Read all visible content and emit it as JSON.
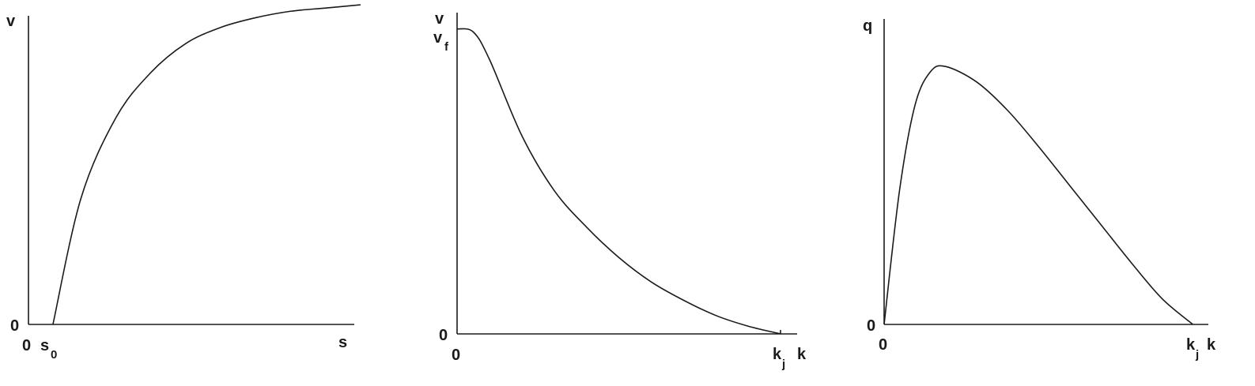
{
  "chart_data": [
    {
      "type": "line",
      "title": "",
      "xlabel": "s",
      "ylabel": "v",
      "x_origin_label": "0",
      "y_origin_label": "0",
      "x_marker": {
        "symbol": "s",
        "subscript": "0"
      },
      "xlim": [
        0,
        10
      ],
      "ylim": [
        0,
        1
      ],
      "grid": false,
      "legend": "none",
      "series": [
        {
          "x": [
            0.7,
            1.5,
            2.5,
            3.5,
            4.5,
            5.5,
            6.5,
            7.5,
            8.5,
            9.5
          ],
          "y": [
            0.0,
            0.39,
            0.64,
            0.78,
            0.87,
            0.92,
            0.95,
            0.97,
            0.98,
            0.99
          ]
        }
      ]
    },
    {
      "type": "line",
      "title": "",
      "xlabel": "k",
      "ylabel": "v",
      "x_origin_label": "0",
      "y_origin_label": "0",
      "y_marker": {
        "symbol": "v",
        "subscript": "f"
      },
      "x_marker": {
        "symbol": "k",
        "subscript": "j"
      },
      "xlim": [
        0,
        1.05
      ],
      "ylim": [
        0,
        1.1
      ],
      "grid": false,
      "legend": "none",
      "series": [
        {
          "x": [
            0.0,
            0.05,
            0.1,
            0.2,
            0.3,
            0.4,
            0.5,
            0.6,
            0.7,
            0.8,
            0.9,
            1.0
          ],
          "y": [
            1.0,
            0.99,
            0.9,
            0.65,
            0.47,
            0.35,
            0.25,
            0.17,
            0.11,
            0.06,
            0.025,
            0.0
          ]
        }
      ]
    },
    {
      "type": "line",
      "title": "",
      "xlabel": "k",
      "ylabel": "q",
      "x_origin_label": "0",
      "y_origin_label": "0",
      "x_marker": {
        "symbol": "k",
        "subscript": "j"
      },
      "xlim": [
        0,
        1.05
      ],
      "ylim": [
        0,
        1.2
      ],
      "grid": false,
      "legend": "none",
      "series": [
        {
          "x": [
            0.0,
            0.05,
            0.1,
            0.15,
            0.2,
            0.3,
            0.4,
            0.5,
            0.6,
            0.7,
            0.8,
            0.9,
            1.0
          ],
          "y": [
            0.0,
            0.52,
            0.85,
            0.98,
            1.0,
            0.94,
            0.83,
            0.69,
            0.54,
            0.39,
            0.24,
            0.1,
            0.0
          ]
        }
      ]
    }
  ]
}
